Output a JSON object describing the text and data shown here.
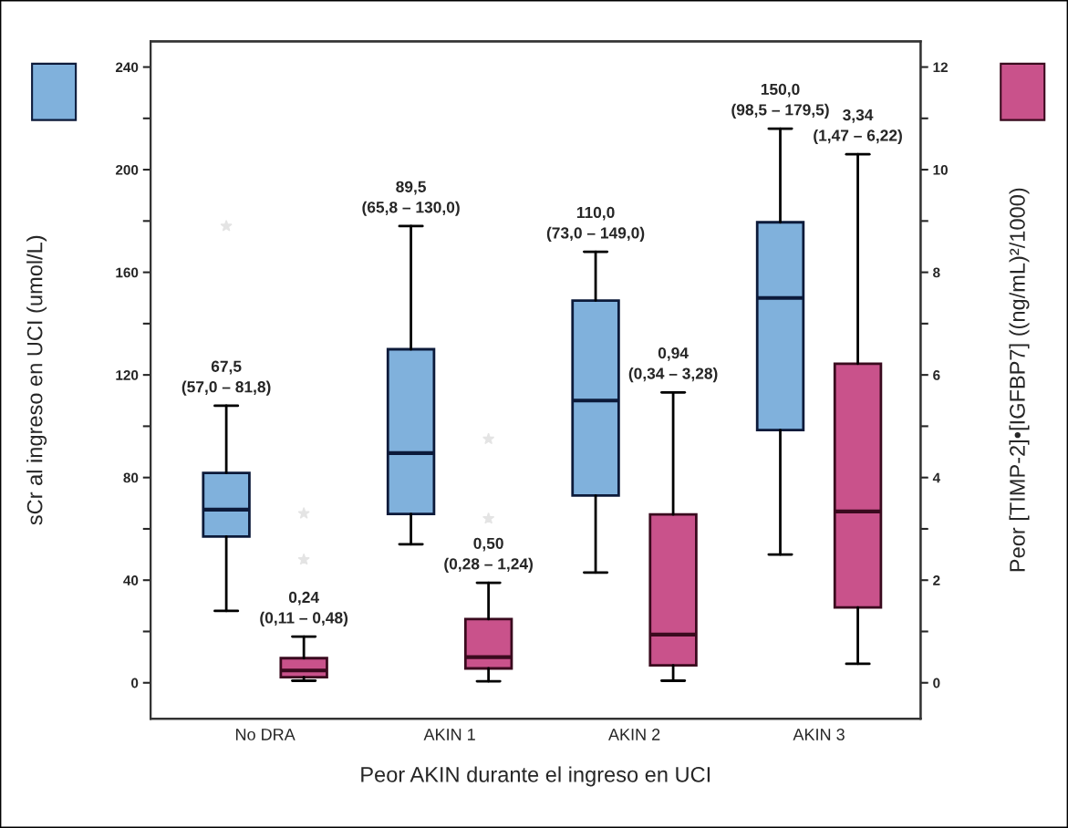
{
  "chart_data": {
    "type": "box",
    "categories": [
      "No DRA",
      "AKIN 1",
      "AKIN 2",
      "AKIN 3"
    ],
    "xlabel": "Peor AKIN durante el ingreso en UCI",
    "ylabel": "sCr al ingreso en UCI (umol/L)",
    "y2label": "Peor [TIMP-2]•[IGFBP7] ((ng/mL)²/1000)",
    "series": [
      {
        "color": "#80b1dc",
        "boxes": [
          {
            "low": 28,
            "q1": 57.0,
            "median": 67.5,
            "q3": 81.8,
            "high": 108,
            "outliers": [
              178
            ]
          },
          {
            "low": 54,
            "q1": 65.8,
            "median": 89.5,
            "q3": 130.0,
            "high": 178
          },
          {
            "low": 43,
            "q1": 73.0,
            "median": 110.0,
            "q3": 149.0,
            "high": 168
          },
          {
            "low": 50,
            "q1": 98.5,
            "median": 150.0,
            "q3": 179.5,
            "high": 216
          }
        ]
      },
      {
        "color": "#c9528b",
        "axis": "y2",
        "boxes": [
          {
            "low": 0.04,
            "q1": 0.11,
            "median": 0.24,
            "q3": 0.48,
            "high": 0.9,
            "outliers": [
              3.3,
              2.4
            ]
          },
          {
            "low": 0.03,
            "q1": 0.28,
            "median": 0.5,
            "q3": 1.24,
            "high": 1.95,
            "outliers": [
              4.75,
              3.2
            ]
          },
          {
            "low": 0.04,
            "q1": 0.34,
            "median": 0.94,
            "q3": 3.28,
            "high": 5.66
          },
          {
            "low": 0.37,
            "q1": 1.47,
            "median": 3.34,
            "q3": 6.22,
            "high": 10.3
          }
        ]
      }
    ],
    "ylim": [
      -14,
      250
    ],
    "yticks": [
      0,
      {
        "value": 20,
        "label": null
      },
      40,
      {
        "value": 60,
        "label": null
      },
      80,
      {
        "value": 100,
        "label": null
      },
      120,
      {
        "value": 140,
        "label": null
      },
      160,
      {
        "value": 180,
        "label": null
      },
      200,
      {
        "value": 220,
        "label": null
      },
      240
    ],
    "y2lim": [
      -0.7,
      12.5
    ],
    "y2ticks": [
      0,
      {
        "value": 1,
        "label": null
      },
      2,
      {
        "value": 3,
        "label": null
      },
      4,
      {
        "value": 5,
        "label": null
      },
      6,
      {
        "value": 7,
        "label": null
      },
      8,
      {
        "value": 9,
        "label": null
      },
      10,
      {
        "value": 11,
        "label": null
      },
      12
    ],
    "annotations": [
      "67,5\n(57,0 – 81,8)",
      "0,24\n(0,11 – 0,48)",
      "89,5\n(65,8 – 130,0)",
      "0,50\n(0,28 – 1,24)",
      "110,0\n(73,0 – 149,0)",
      "0,94\n(0,34 – 3,28)",
      "150,0\n(98,5 – 179,5)",
      "3,34\n(1,47 – 6,22)"
    ],
    "grid": false,
    "legend": false
  }
}
